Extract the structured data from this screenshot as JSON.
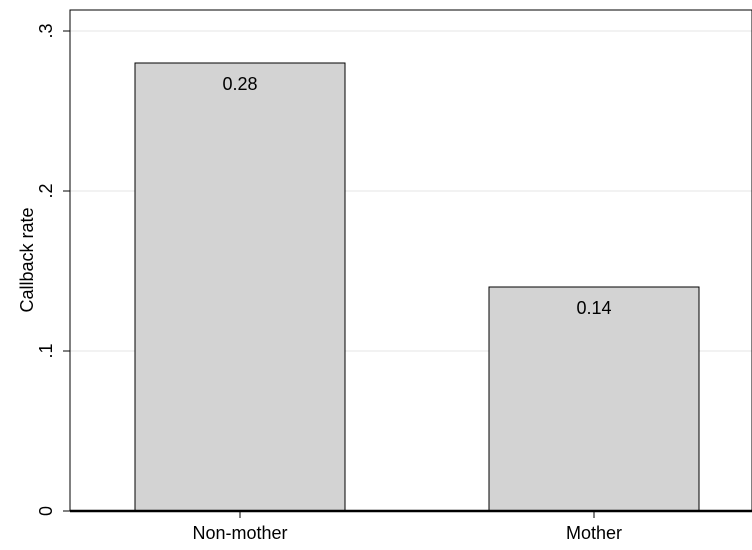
{
  "chart_data": {
    "type": "bar",
    "categories": [
      "Non-mother",
      "Mother"
    ],
    "values": [
      0.28,
      0.14
    ],
    "data_labels": [
      "0.28",
      "0.14"
    ],
    "title": "",
    "xlabel": "",
    "ylabel": "Callback rate",
    "ylim": [
      0,
      0.3
    ],
    "y_ticks": [
      0,
      0.1,
      0.2,
      0.3
    ],
    "y_tick_labels": [
      "0",
      ".1",
      ".2",
      ".3"
    ],
    "grid": true,
    "colors": {
      "bar_fill": "#d3d3d3",
      "bar_stroke": "#000000",
      "grid": "#e6e6e6",
      "axis": "#000000"
    }
  }
}
